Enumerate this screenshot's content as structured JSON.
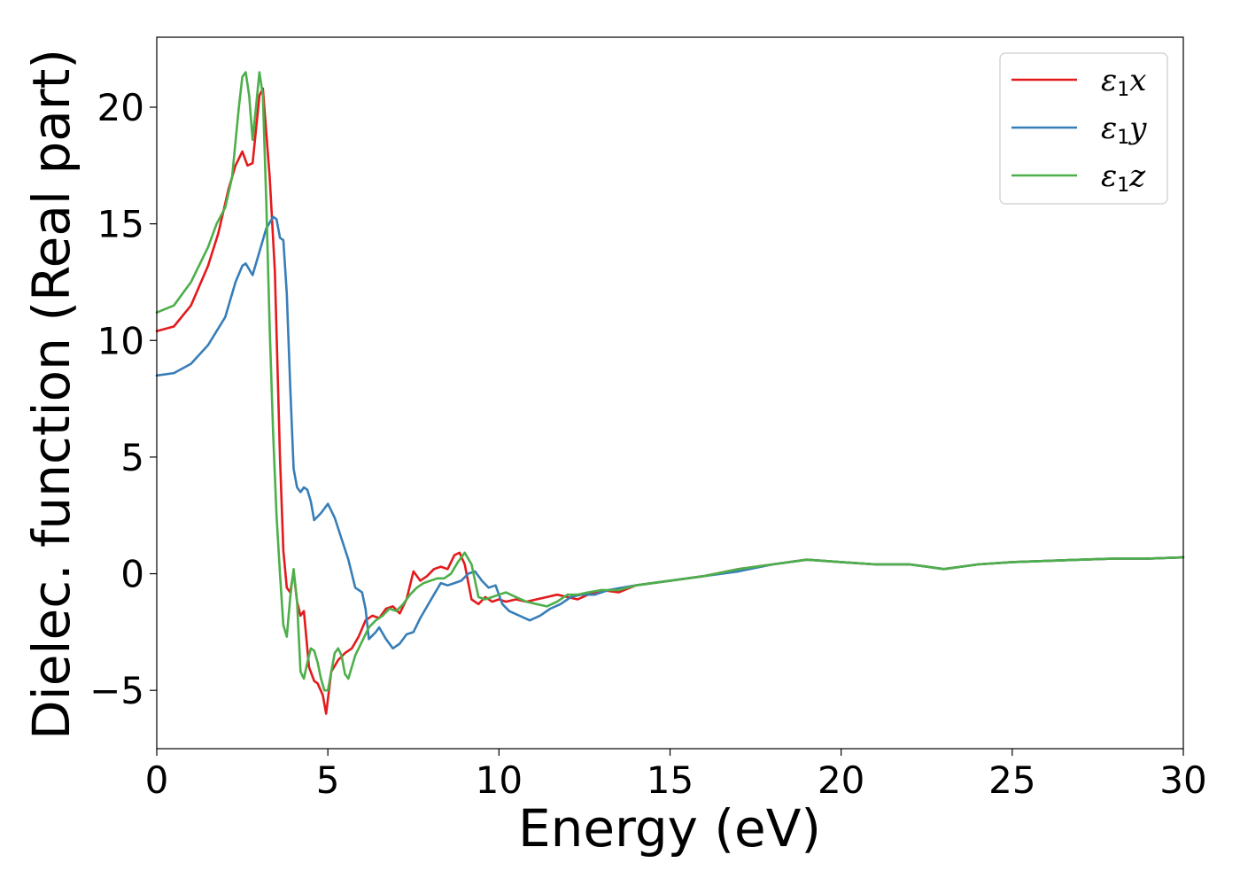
{
  "chart_data": {
    "type": "line",
    "title": "",
    "xlabel": "Energy (eV)",
    "ylabel": "Dielec. function (Real part)",
    "xlim": [
      0,
      30
    ],
    "ylim": [
      -7.5,
      23
    ],
    "xticks": [
      0,
      5,
      10,
      15,
      20,
      25,
      30
    ],
    "xtick_labels": [
      "0",
      "5",
      "10",
      "15",
      "20",
      "25",
      "30"
    ],
    "yticks": [
      -5,
      0,
      5,
      10,
      15,
      20
    ],
    "ytick_labels": [
      "−5",
      "0",
      "5",
      "10",
      "15",
      "20"
    ],
    "grid": false,
    "legend_position": "top-right",
    "series": [
      {
        "name": "ε1x",
        "name_base": "ε",
        "name_sub": "1",
        "name_var": "x",
        "color": "#e41a1c",
        "x": [
          0,
          0.5,
          1.0,
          1.5,
          1.8,
          2.1,
          2.3,
          2.5,
          2.65,
          2.8,
          3.0,
          3.1,
          3.3,
          3.45,
          3.6,
          3.7,
          3.8,
          3.9,
          4.0,
          4.1,
          4.2,
          4.3,
          4.45,
          4.6,
          4.7,
          4.85,
          4.95,
          5.1,
          5.3,
          5.5,
          5.7,
          5.9,
          6.1,
          6.3,
          6.5,
          6.7,
          6.9,
          7.1,
          7.3,
          7.5,
          7.7,
          7.9,
          8.1,
          8.3,
          8.5,
          8.7,
          8.85,
          9.0,
          9.2,
          9.4,
          9.6,
          9.8,
          10.0,
          10.2,
          10.5,
          10.8,
          11.1,
          11.4,
          11.7,
          12.0,
          12.3,
          12.6,
          13.0,
          13.5,
          14.0,
          14.5,
          15.0,
          16.0,
          17.0,
          18.0,
          19.0,
          20.0,
          21.0,
          22.0,
          22.5,
          23.0,
          24.0,
          25.0,
          26.0,
          27.0,
          28.0,
          29.0,
          30.0
        ],
        "y": [
          10.4,
          10.6,
          11.5,
          13.2,
          14.6,
          16.5,
          17.5,
          18.1,
          17.5,
          17.6,
          20.5,
          20.8,
          17.0,
          13.0,
          5.0,
          1.0,
          -0.6,
          -0.8,
          0.1,
          -1.2,
          -1.8,
          -1.6,
          -4.0,
          -4.6,
          -4.7,
          -5.2,
          -6.0,
          -4.2,
          -3.7,
          -3.4,
          -3.2,
          -2.7,
          -2.0,
          -1.8,
          -1.9,
          -1.5,
          -1.4,
          -1.7,
          -1.1,
          0.1,
          -0.3,
          -0.1,
          0.2,
          0.3,
          0.2,
          0.8,
          0.9,
          0.4,
          -1.1,
          -1.3,
          -1.0,
          -1.2,
          -1.1,
          -1.2,
          -1.1,
          -1.2,
          -1.1,
          -1.0,
          -0.9,
          -1.0,
          -1.1,
          -0.9,
          -0.7,
          -0.8,
          -0.5,
          -0.4,
          -0.3,
          -0.1,
          0.2,
          0.4,
          0.6,
          0.5,
          0.4,
          0.4,
          0.3,
          0.2,
          0.4,
          0.5,
          0.55,
          0.6,
          0.65,
          0.65,
          0.7
        ]
      },
      {
        "name": "ε1y",
        "name_base": "ε",
        "name_sub": "1",
        "name_var": "y",
        "color": "#377eb8",
        "x": [
          0,
          0.5,
          1.0,
          1.5,
          2.0,
          2.3,
          2.5,
          2.6,
          2.8,
          3.0,
          3.2,
          3.4,
          3.5,
          3.6,
          3.7,
          3.8,
          3.9,
          4.0,
          4.1,
          4.2,
          4.3,
          4.4,
          4.5,
          4.6,
          4.8,
          5.0,
          5.2,
          5.4,
          5.6,
          5.8,
          6.0,
          6.1,
          6.2,
          6.4,
          6.5,
          6.7,
          6.9,
          7.1,
          7.3,
          7.5,
          7.7,
          7.9,
          8.1,
          8.3,
          8.5,
          8.7,
          8.9,
          9.1,
          9.3,
          9.5,
          9.7,
          9.9,
          10.1,
          10.3,
          10.6,
          10.9,
          11.2,
          11.5,
          11.8,
          12.1,
          12.4,
          12.8,
          13.2,
          13.6,
          14.0,
          14.5,
          15.0,
          16.0,
          17.0,
          18.0,
          19.0,
          20.0,
          21.0,
          22.0,
          22.5,
          23.0,
          24.0,
          25.0,
          26.0,
          27.0,
          28.0,
          29.0,
          30.0
        ],
        "y": [
          8.5,
          8.6,
          9.0,
          9.8,
          11.0,
          12.5,
          13.2,
          13.3,
          12.8,
          13.8,
          14.8,
          15.3,
          15.2,
          14.4,
          14.3,
          12.0,
          8.0,
          4.5,
          3.7,
          3.5,
          3.7,
          3.6,
          3.1,
          2.3,
          2.6,
          3.0,
          2.4,
          1.5,
          0.6,
          -0.6,
          -0.8,
          -1.5,
          -2.8,
          -2.5,
          -2.3,
          -2.8,
          -3.2,
          -3.0,
          -2.6,
          -2.5,
          -1.9,
          -1.4,
          -0.9,
          -0.4,
          -0.5,
          -0.4,
          -0.3,
          0.0,
          0.1,
          -0.3,
          -0.6,
          -0.5,
          -1.3,
          -1.6,
          -1.8,
          -2.0,
          -1.8,
          -1.5,
          -1.3,
          -1.0,
          -0.9,
          -0.9,
          -0.7,
          -0.6,
          -0.5,
          -0.4,
          -0.3,
          -0.1,
          0.1,
          0.4,
          0.6,
          0.5,
          0.4,
          0.4,
          0.3,
          0.2,
          0.4,
          0.5,
          0.55,
          0.6,
          0.65,
          0.65,
          0.7
        ]
      },
      {
        "name": "ε1z",
        "name_base": "ε",
        "name_sub": "1",
        "name_var": "z",
        "color": "#4daf4a",
        "x": [
          0,
          0.5,
          1.0,
          1.5,
          1.75,
          2.0,
          2.2,
          2.4,
          2.5,
          2.6,
          2.7,
          2.8,
          2.9,
          3.0,
          3.1,
          3.2,
          3.3,
          3.4,
          3.5,
          3.6,
          3.7,
          3.8,
          3.9,
          4.0,
          4.1,
          4.2,
          4.3,
          4.4,
          4.5,
          4.6,
          4.7,
          4.8,
          4.9,
          5.0,
          5.1,
          5.2,
          5.3,
          5.4,
          5.5,
          5.6,
          5.7,
          5.8,
          6.0,
          6.2,
          6.4,
          6.6,
          6.8,
          7.0,
          7.2,
          7.4,
          7.6,
          7.8,
          8.0,
          8.2,
          8.4,
          8.6,
          8.8,
          9.0,
          9.2,
          9.4,
          9.6,
          9.8,
          10.0,
          10.2,
          10.5,
          10.8,
          11.1,
          11.4,
          11.7,
          12.0,
          12.3,
          12.6,
          13.0,
          13.5,
          14.0,
          14.5,
          15.0,
          16.0,
          17.0,
          18.0,
          19.0,
          20.0,
          21.0,
          22.0,
          22.5,
          23.0,
          24.0,
          25.0,
          26.0,
          27.0,
          28.0,
          29.0,
          30.0
        ],
        "y": [
          11.2,
          11.5,
          12.5,
          14.0,
          15.0,
          15.7,
          17.0,
          20.0,
          21.3,
          21.5,
          20.5,
          18.6,
          20.0,
          21.5,
          20.5,
          16.0,
          10.5,
          6.0,
          2.5,
          0.0,
          -2.2,
          -2.7,
          -1.0,
          0.2,
          -1.2,
          -4.2,
          -4.5,
          -3.8,
          -3.2,
          -3.3,
          -3.8,
          -4.5,
          -5.0,
          -5.0,
          -4.2,
          -3.4,
          -3.2,
          -3.5,
          -4.3,
          -4.5,
          -4.0,
          -3.5,
          -2.9,
          -2.3,
          -2.0,
          -1.8,
          -1.5,
          -1.6,
          -1.3,
          -0.9,
          -0.6,
          -0.4,
          -0.3,
          -0.2,
          -0.2,
          0.0,
          0.5,
          0.9,
          0.4,
          -1.0,
          -1.1,
          -1.0,
          -0.9,
          -0.8,
          -1.0,
          -1.2,
          -1.3,
          -1.4,
          -1.2,
          -0.9,
          -0.9,
          -0.8,
          -0.7,
          -0.7,
          -0.5,
          -0.4,
          -0.3,
          -0.1,
          0.2,
          0.4,
          0.6,
          0.5,
          0.4,
          0.4,
          0.3,
          0.2,
          0.4,
          0.5,
          0.55,
          0.6,
          0.65,
          0.65,
          0.7
        ]
      }
    ]
  }
}
